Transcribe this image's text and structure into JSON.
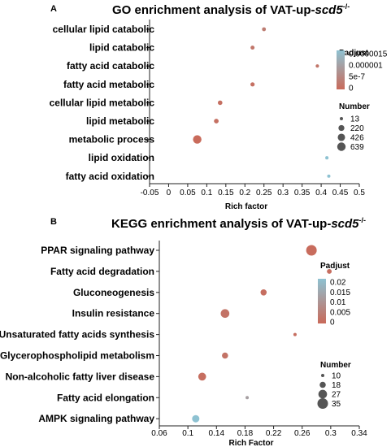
{
  "chart_data": [
    {
      "panel": "A",
      "type": "scatter",
      "title_main": "GO enrichment analysis of VAT-up-",
      "title_gene": "scd5",
      "title_sup": "-/-",
      "xlabel": "Rich factor",
      "xlim": [
        -0.05,
        0.5
      ],
      "xticks": [
        "-0.05",
        "0",
        "0.05",
        "0.1",
        "0.15",
        "0.2",
        "0.25",
        "0.3",
        "0.35",
        "0.4",
        "0.45",
        "0.5"
      ],
      "categories": [
        "cellular lipid catabolic",
        "lipid catabolic",
        "fatty acid catabolic",
        "fatty acid metabolic",
        "cellular lipid metabolic",
        "lipid metabolic",
        "metabolic process",
        "lipid oxidation",
        "fatty acid oxidation"
      ],
      "points": [
        {
          "x": 0.25,
          "number": 40,
          "padjust": 3e-07
        },
        {
          "x": 0.22,
          "number": 45,
          "padjust": 2e-07
        },
        {
          "x": 0.39,
          "number": 18,
          "padjust": 2e-07
        },
        {
          "x": 0.22,
          "number": 60,
          "padjust": 1e-07
        },
        {
          "x": 0.135,
          "number": 80,
          "padjust": 1e-07
        },
        {
          "x": 0.125,
          "number": 90,
          "padjust": 1e-07
        },
        {
          "x": 0.075,
          "number": 639,
          "padjust": 1e-08
        },
        {
          "x": 0.415,
          "number": 15,
          "padjust": 1.5e-06
        },
        {
          "x": 0.42,
          "number": 13,
          "padjust": 1.5e-06
        }
      ],
      "color_legend": {
        "title": "Padjust",
        "labels": [
          "0.0000015",
          "0.000001",
          "5e-7",
          "0"
        ],
        "max": 1.5e-06
      },
      "size_legend": {
        "title": "Number",
        "labels": [
          "13",
          "220",
          "426",
          "639"
        ],
        "values": [
          13,
          220,
          426,
          639
        ]
      }
    },
    {
      "panel": "B",
      "type": "scatter",
      "title_main": "KEGG enrichment analysis of VAT-up-",
      "title_gene": "scd5",
      "title_sup": "-/-",
      "xlabel": "Rich Factor",
      "xlim": [
        0.06,
        0.34
      ],
      "xticks": [
        "0.06",
        "0.1",
        "0.14",
        "0.18",
        "0.22",
        "0.26",
        "0.3",
        "0.34"
      ],
      "categories": [
        "PPAR signaling pathway",
        "Fatty acid degradation",
        "Gluconeogenesis",
        "Insulin resistance",
        "Unsaturated fatty acids synthesis",
        "Glycerophospholipid metabolism",
        "Non-alcoholic fatty liver disease",
        "Fatty acid elongation",
        "AMPK signaling pathway"
      ],
      "points": [
        {
          "x": 0.273,
          "number": 35,
          "padjust": 0.0005
        },
        {
          "x": 0.298,
          "number": 14,
          "padjust": 0.001
        },
        {
          "x": 0.206,
          "number": 18,
          "padjust": 0.001
        },
        {
          "x": 0.152,
          "number": 27,
          "padjust": 0.002
        },
        {
          "x": 0.25,
          "number": 10,
          "padjust": 0.001
        },
        {
          "x": 0.152,
          "number": 18,
          "padjust": 0.002
        },
        {
          "x": 0.12,
          "number": 24,
          "padjust": 0.001
        },
        {
          "x": 0.183,
          "number": 7,
          "padjust": 0.012
        },
        {
          "x": 0.111,
          "number": 22,
          "padjust": 0.02
        }
      ],
      "color_legend": {
        "title": "Padjust",
        "labels": [
          "0.02",
          "0.015",
          "0.01",
          "0.005",
          "0"
        ],
        "max": 0.02
      },
      "size_legend": {
        "title": "Number",
        "labels": [
          "10",
          "18",
          "27",
          "35"
        ],
        "values": [
          10,
          18,
          27,
          35
        ]
      }
    }
  ],
  "colors": {
    "low": "#c96a5a",
    "high": "#8ec2d2",
    "axis": "#222222"
  }
}
